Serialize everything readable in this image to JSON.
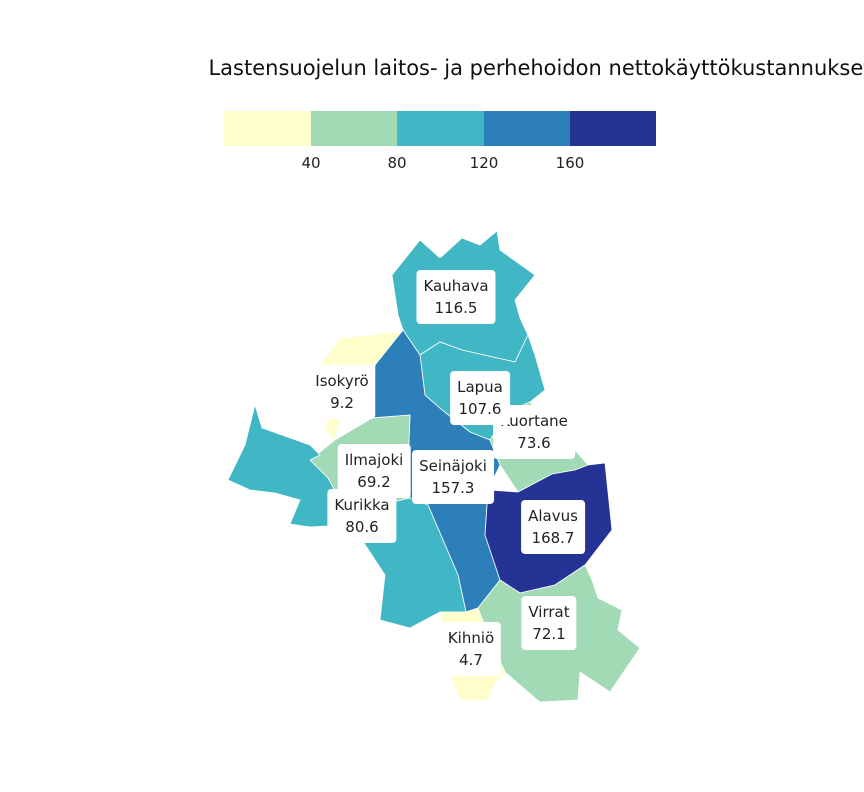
{
  "title": "Lastensuojelun laitos- ja perhehoidon nettokäyttökustannukset",
  "legend": {
    "colors": [
      "#ffffcc",
      "#a1dab4",
      "#41b6c4",
      "#2c7fb8",
      "#253494"
    ],
    "ticks": [
      "40",
      "80",
      "120",
      "160"
    ]
  },
  "chart_data": {
    "type": "choropleth",
    "breaks": [
      40,
      80,
      120,
      160
    ],
    "regions": [
      {
        "name": "Kauhava",
        "value": "116.5",
        "color": "#41b6c4"
      },
      {
        "name": "Isokyrö",
        "value": "9.2",
        "color": "#ffffcc"
      },
      {
        "name": "Lapua",
        "value": "107.6",
        "color": "#41b6c4"
      },
      {
        "name": "Kuortane",
        "value": "73.6",
        "color": "#a1dab4"
      },
      {
        "name": "Ilmajoki",
        "value": "69.2",
        "color": "#a1dab4"
      },
      {
        "name": "Seinäjoki",
        "value": "157.3",
        "color": "#2c7fb8"
      },
      {
        "name": "Kurikka",
        "value": "80.6",
        "color": "#41b6c4"
      },
      {
        "name": "Alavus",
        "value": "168.7",
        "color": "#253494"
      },
      {
        "name": "Virrat",
        "value": "72.1",
        "color": "#a1dab4"
      },
      {
        "name": "Kihniö",
        "value": "4.7",
        "color": "#ffffcc"
      }
    ]
  }
}
